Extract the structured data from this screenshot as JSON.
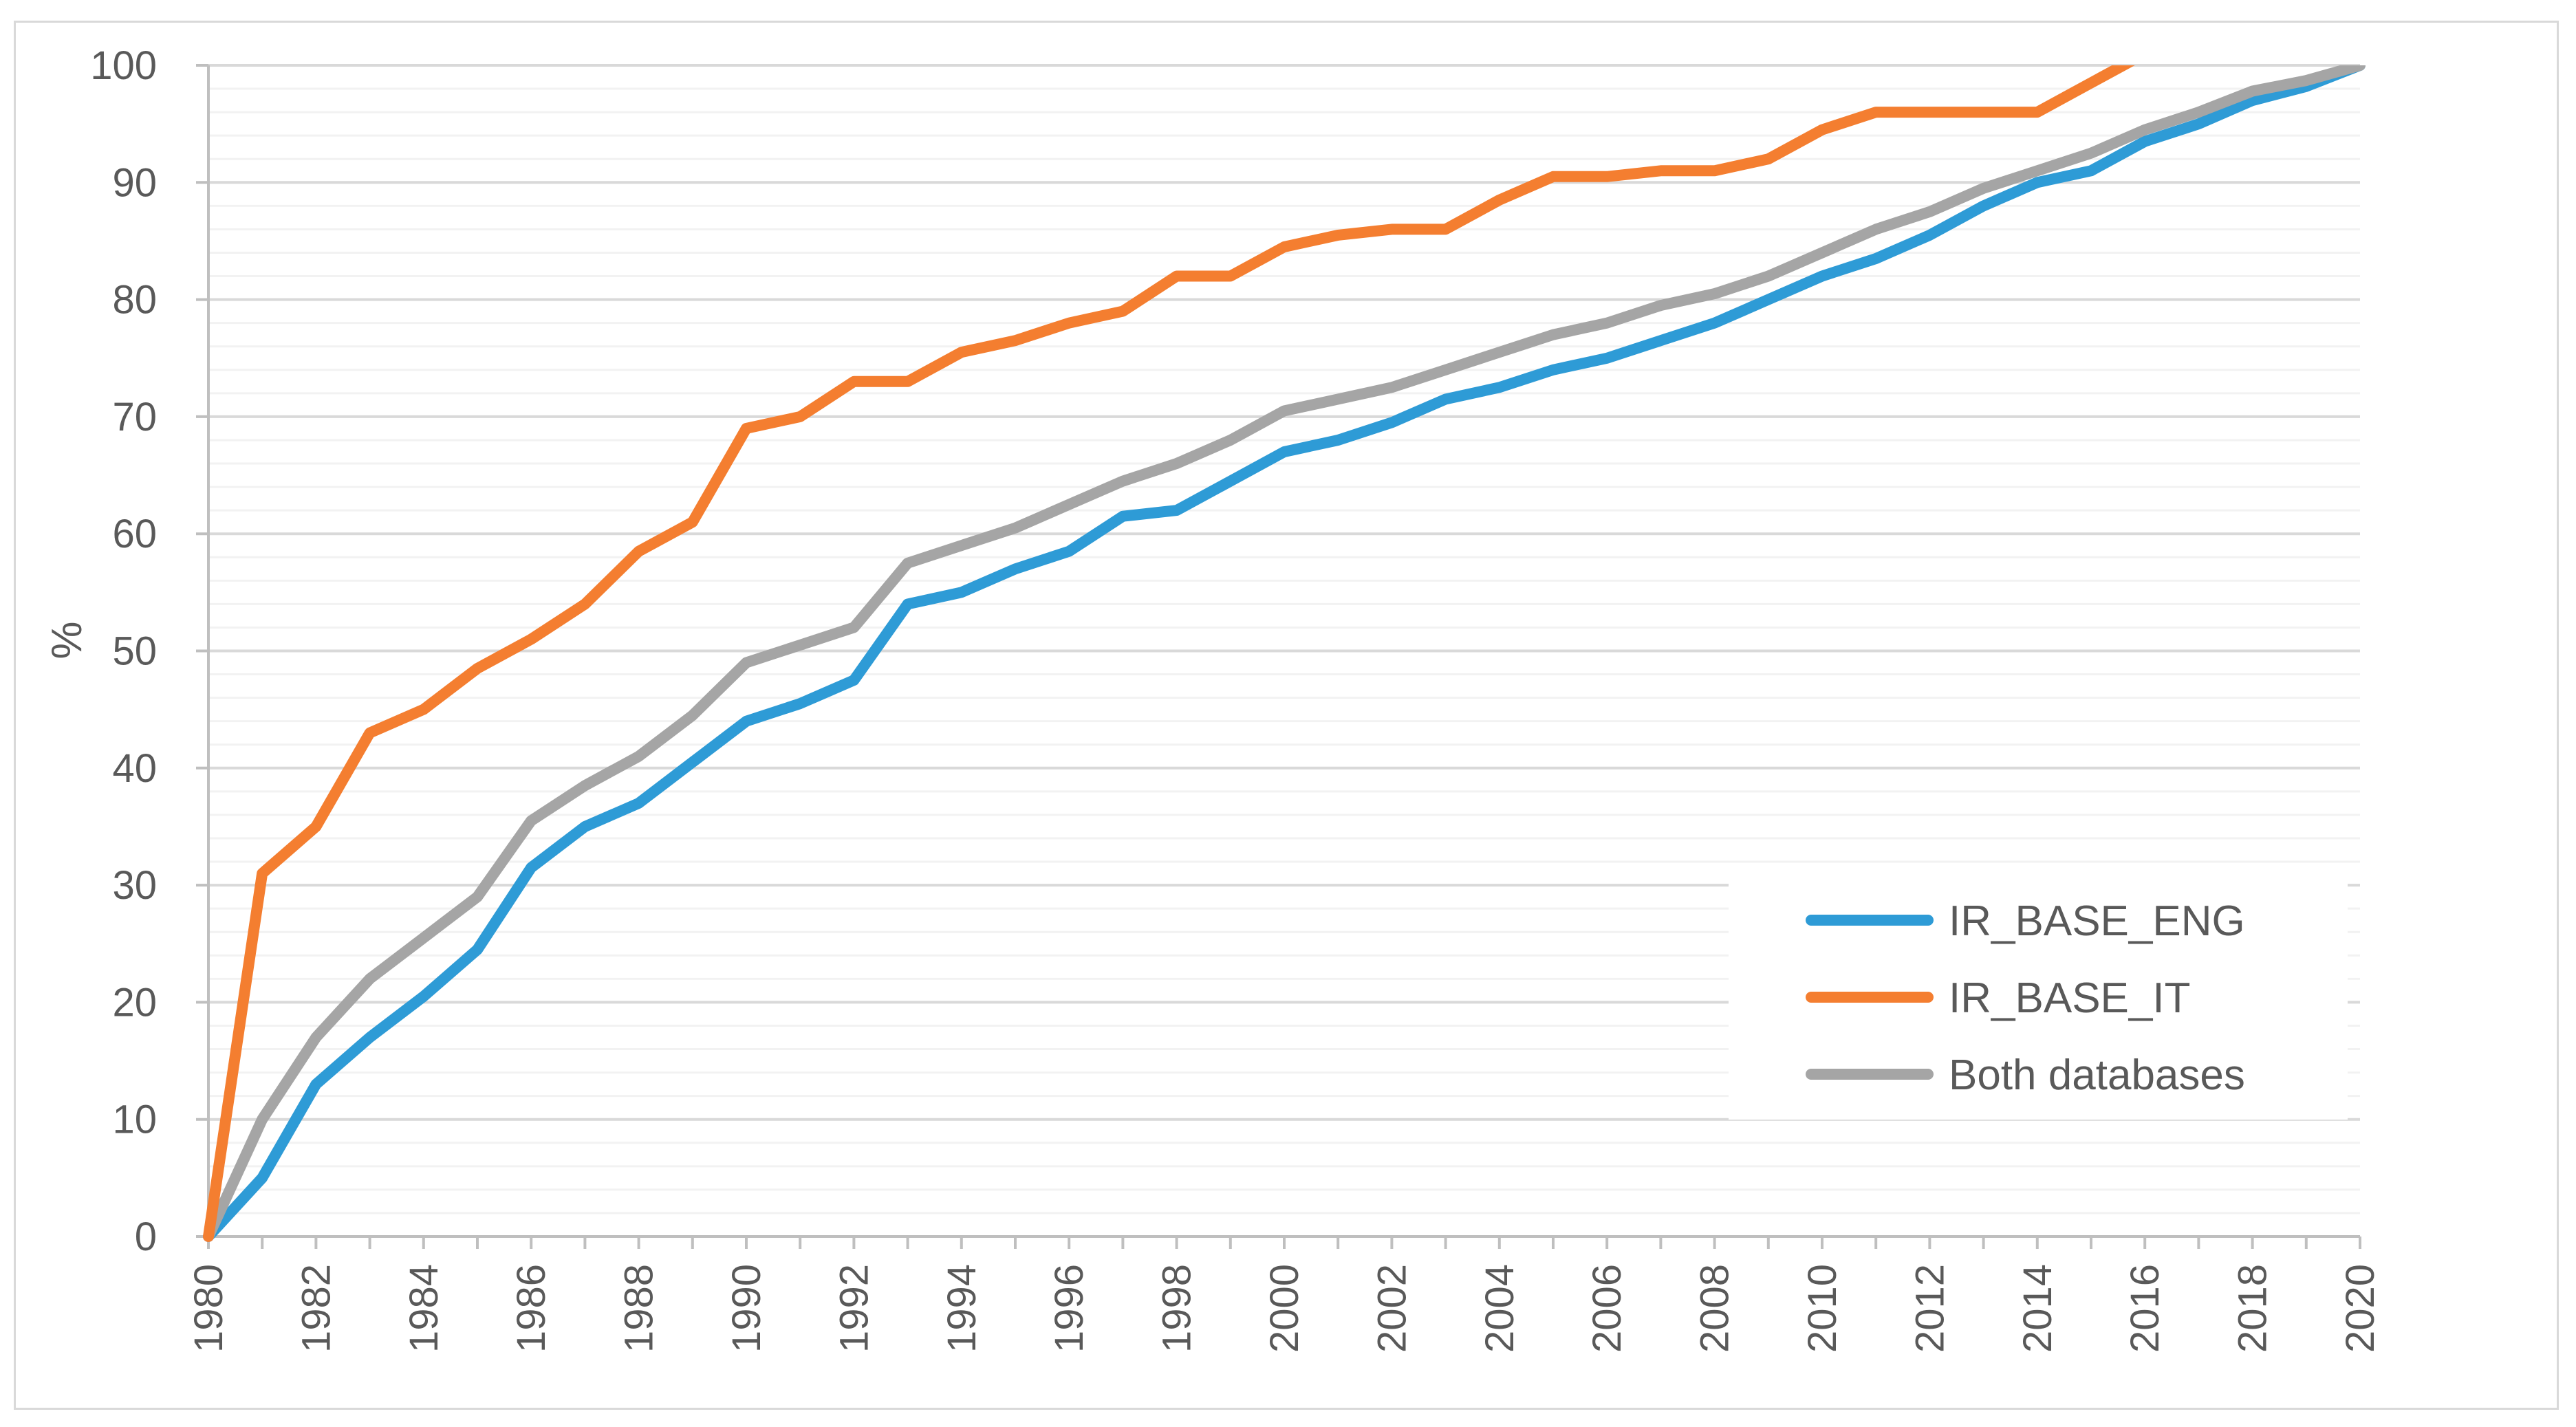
{
  "chart_data": {
    "type": "line",
    "title": "",
    "xlabel": "",
    "ylabel": "%",
    "ylim": [
      0,
      100
    ],
    "y_major_ticks": [
      0,
      10,
      20,
      30,
      40,
      50,
      60,
      70,
      80,
      90,
      100
    ],
    "y_minor_step": 2,
    "x": [
      1980,
      1981,
      1982,
      1983,
      1984,
      1985,
      1986,
      1987,
      1988,
      1989,
      1990,
      1991,
      1992,
      1993,
      1994,
      1995,
      1996,
      1997,
      1998,
      1999,
      2000,
      2001,
      2002,
      2003,
      2004,
      2005,
      2006,
      2007,
      2008,
      2009,
      2010,
      2011,
      2012,
      2013,
      2014,
      2015,
      2016,
      2017,
      2018,
      2019,
      2020
    ],
    "x_tick_labels": [
      "1980",
      "1982",
      "1984",
      "1986",
      "1988",
      "1990",
      "1992",
      "1994",
      "1996",
      "1998",
      "2000",
      "2002",
      "2004",
      "2006",
      "2008",
      "2010",
      "2012",
      "2014",
      "2016",
      "2018",
      "2020"
    ],
    "legend_position": "bottom-right",
    "series": [
      {
        "name": "IR_BASE_ENG",
        "color": "#2e9bd6",
        "values": [
          0,
          5,
          13,
          17,
          20.5,
          24.5,
          31.5,
          35,
          37,
          40.5,
          44,
          45.5,
          47.5,
          54,
          55,
          57,
          58.5,
          61.5,
          62,
          64.5,
          67,
          68,
          69.5,
          71.5,
          72.5,
          74,
          75,
          76.5,
          78,
          80,
          82,
          83.5,
          85.5,
          88,
          90,
          91,
          93.5,
          95,
          97,
          98.2,
          100
        ]
      },
      {
        "name": "IR_BASE_IT",
        "color": "#f47e30",
        "values": [
          0,
          31,
          35,
          43,
          45,
          48.5,
          51,
          54,
          58.5,
          61,
          69,
          70,
          73,
          73,
          75.5,
          76.5,
          78,
          79,
          82,
          82,
          84.5,
          85.5,
          86,
          86,
          88.5,
          90.5,
          90.5,
          91,
          91,
          92,
          94.5,
          96,
          96,
          96,
          96,
          98.5,
          101,
          null,
          null,
          null,
          null
        ]
      },
      {
        "name": "Both databases",
        "color": "#a5a5a5",
        "values": [
          0,
          10,
          17,
          22,
          25.5,
          29,
          35.5,
          38.5,
          41,
          44.5,
          49,
          50.5,
          52,
          57.5,
          59,
          60.5,
          62.5,
          64.5,
          66,
          68,
          70.5,
          71.5,
          72.5,
          74,
          75.5,
          77,
          78,
          79.5,
          80.5,
          82,
          84,
          86,
          87.5,
          89.5,
          91,
          92.5,
          94.5,
          96,
          97.8,
          98.7,
          100
        ]
      }
    ]
  }
}
